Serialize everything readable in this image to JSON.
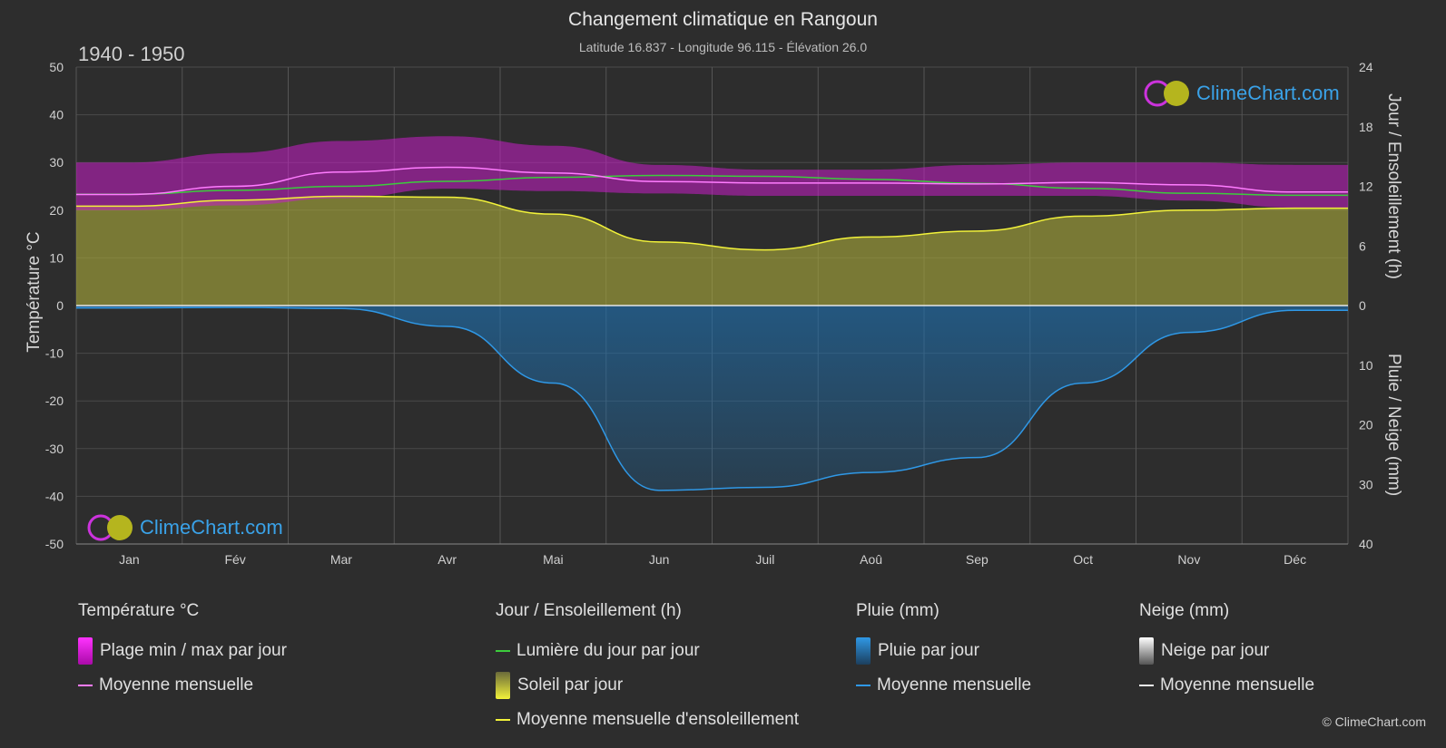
{
  "header": {
    "title": "Changement climatique en Rangoun",
    "subtitle": "Latitude 16.837 - Longitude 96.115 - Élévation 26.0",
    "period": "1940 - 1950"
  },
  "brand": {
    "logo_text": "ClimeChart.com",
    "copyright": "© ClimeChart.com"
  },
  "colors": {
    "background": "#2d2d2d",
    "temp_band": "#c81ec8",
    "temp_line": "#ff7cff",
    "daylight_line": "#3ccc3c",
    "sun_fill": "#a8a83a",
    "sun_line": "#f2f23a",
    "rain_fill": "#1e6fae",
    "rain_line": "#2f98e6",
    "brand_blue": "#3aa2e8"
  },
  "chart_data": {
    "type": "area",
    "months": [
      "Jan",
      "Fév",
      "Mar",
      "Avr",
      "Mai",
      "Jun",
      "Juil",
      "Aoû",
      "Sep",
      "Oct",
      "Nov",
      "Déc"
    ],
    "left_axis": {
      "title": "Température °C",
      "range": [
        -50,
        50
      ],
      "ticks": [
        50,
        40,
        30,
        20,
        10,
        0,
        -10,
        -20,
        -30,
        -40,
        -50
      ]
    },
    "right_axis_top": {
      "title": "Jour / Ensoleillement (h)",
      "range": [
        0,
        24
      ],
      "ticks": [
        24,
        18,
        12,
        6,
        0
      ]
    },
    "right_axis_bottom": {
      "title": "Pluie / Neige (mm)",
      "range": [
        0,
        40
      ],
      "ticks": [
        0,
        10,
        20,
        30,
        40
      ]
    },
    "grid": true,
    "series": [
      {
        "name": "Plage min / max par jour",
        "unit": "°C",
        "kind": "band",
        "min": [
          20,
          21,
          22.5,
          24.5,
          24,
          23.5,
          23,
          23,
          23,
          23,
          22,
          20.5
        ],
        "max": [
          30,
          32,
          34.5,
          35.5,
          33.5,
          29.5,
          28.5,
          28.5,
          29.5,
          30,
          30,
          29.5
        ]
      },
      {
        "name": "Moyenne mensuelle",
        "unit": "°C",
        "kind": "line",
        "values": [
          23.3,
          25,
          28,
          29,
          27.8,
          26,
          25.7,
          25.7,
          25.5,
          25.8,
          25.3,
          23.8
        ]
      },
      {
        "name": "Lumière du jour par jour",
        "unit": "h",
        "kind": "line",
        "values": [
          11.2,
          11.6,
          12.0,
          12.5,
          12.9,
          13.1,
          13.0,
          12.7,
          12.3,
          11.8,
          11.3,
          11.1
        ]
      },
      {
        "name": "Soleil par jour",
        "unit": "h",
        "kind": "area",
        "values": [
          10.0,
          10.6,
          11.0,
          10.9,
          9.2,
          6.4,
          5.6,
          6.9,
          7.5,
          9.0,
          9.6,
          9.8
        ]
      },
      {
        "name": "Moyenne mensuelle d'ensoleillement",
        "unit": "h",
        "kind": "line",
        "values": [
          10.0,
          10.6,
          11.0,
          10.9,
          9.2,
          6.4,
          5.6,
          6.9,
          7.5,
          9.0,
          9.6,
          9.8
        ]
      },
      {
        "name": "Pluie par jour",
        "unit": "mm",
        "kind": "area",
        "values": [
          0.4,
          0.3,
          0.5,
          3.5,
          13.0,
          31.0,
          30.5,
          28.0,
          25.5,
          13.0,
          4.5,
          0.8
        ]
      },
      {
        "name": "Moyenne mensuelle",
        "unit": "mm",
        "kind": "line",
        "values": [
          0.4,
          0.3,
          0.5,
          3.5,
          13.0,
          31.0,
          30.5,
          28.0,
          25.5,
          13.0,
          4.5,
          0.8
        ]
      }
    ]
  },
  "legend": [
    {
      "heading": "Température °C",
      "items": [
        {
          "label": "Plage min / max par jour",
          "swatch": "box",
          "icon": "temperature-range-swatch"
        },
        {
          "label": "Moyenne mensuelle",
          "swatch": "line",
          "icon": "temperature-mean-line"
        }
      ]
    },
    {
      "heading": "Jour / Ensoleillement (h)",
      "items": [
        {
          "label": "Lumière du jour par jour",
          "swatch": "line",
          "icon": "daylight-line"
        },
        {
          "label": "Soleil par jour",
          "swatch": "box",
          "icon": "sunshine-swatch"
        },
        {
          "label": "Moyenne mensuelle d'ensoleillement",
          "swatch": "line",
          "icon": "sunshine-mean-line"
        }
      ]
    },
    {
      "heading": "Pluie (mm)",
      "items": [
        {
          "label": "Pluie par jour",
          "swatch": "box",
          "icon": "rain-swatch"
        },
        {
          "label": "Moyenne mensuelle",
          "swatch": "line",
          "icon": "rain-mean-line"
        }
      ]
    },
    {
      "heading": "Neige (mm)",
      "items": [
        {
          "label": "Neige par jour",
          "swatch": "box",
          "icon": "snow-swatch"
        },
        {
          "label": "Moyenne mensuelle",
          "swatch": "line",
          "icon": "snow-mean-line"
        }
      ]
    }
  ]
}
